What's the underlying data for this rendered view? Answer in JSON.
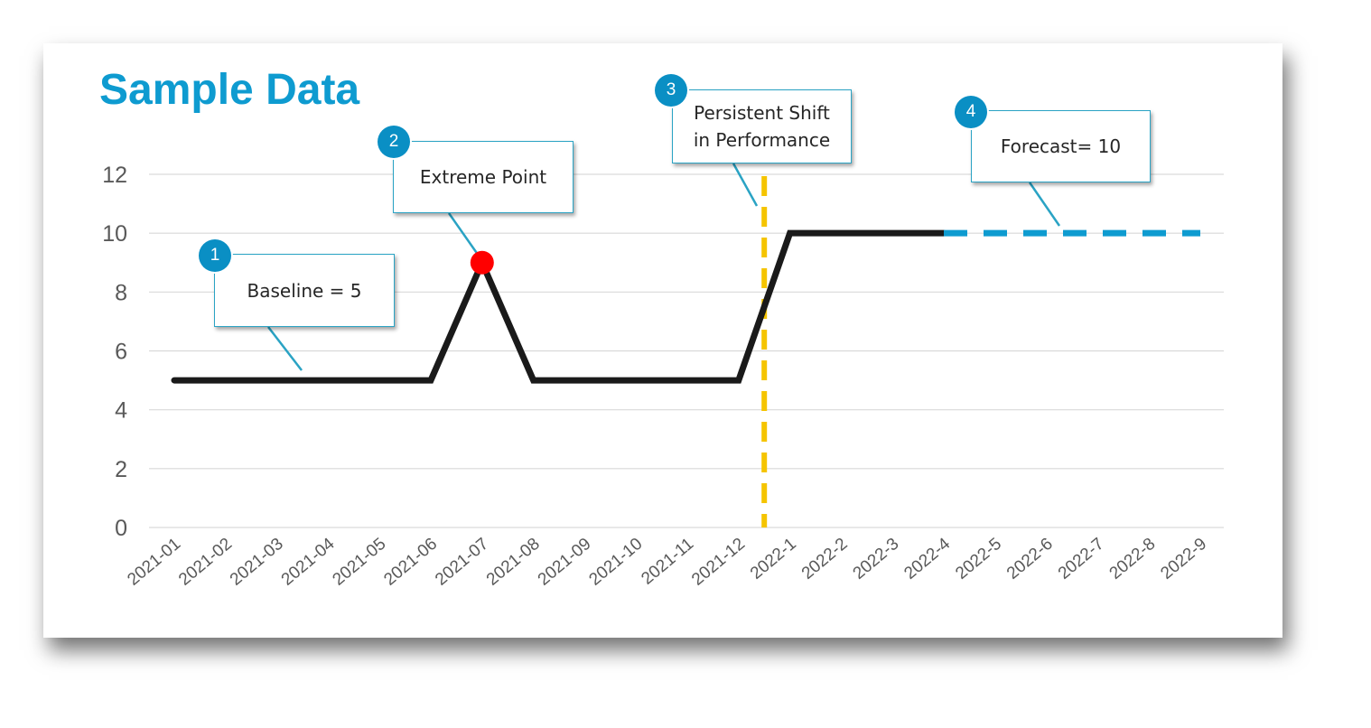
{
  "title": "Sample Data",
  "chart_data": {
    "type": "line",
    "categories": [
      "2021-01",
      "2021-02",
      "2021-03",
      "2021-04",
      "2021-05",
      "2021-06",
      "2021-07",
      "2021-08",
      "2021-09",
      "2021-10",
      "2021-11",
      "2021-12",
      "2022-1",
      "2022-2",
      "2022-3",
      "2022-4",
      "2022-5",
      "2022-6",
      "2022-7",
      "2022-8",
      "2022-9"
    ],
    "series": [
      {
        "values": [
          5,
          5,
          5,
          5,
          5,
          5,
          9,
          5,
          5,
          5,
          5,
          5,
          10,
          10,
          10,
          10,
          null,
          null,
          null,
          null,
          null
        ],
        "color": "#1a1a1a",
        "style": "solid"
      },
      {
        "values": [
          null,
          null,
          null,
          null,
          null,
          null,
          null,
          null,
          null,
          null,
          null,
          null,
          null,
          null,
          null,
          10,
          10,
          10,
          10,
          10,
          10
        ],
        "color": "#0e9bd0",
        "style": "dashed"
      }
    ],
    "highlight_point": {
      "category": "2021-07",
      "value": 9,
      "color": "#ff0000"
    },
    "shift_marker": {
      "between": [
        "2021-12",
        "2022-1"
      ],
      "color": "#f5c400",
      "style": "dashed"
    },
    "ylim": [
      0,
      12
    ],
    "yticks": [
      0,
      2,
      4,
      6,
      8,
      10,
      12
    ],
    "grid": true,
    "annotations": [
      {
        "number": "1",
        "text": "Baseline = 5"
      },
      {
        "number": "2",
        "text": "Extreme Point"
      },
      {
        "number": "3",
        "text": "Persistent Shift\nin Performance"
      },
      {
        "number": "4",
        "text": "Forecast= 10"
      }
    ]
  }
}
